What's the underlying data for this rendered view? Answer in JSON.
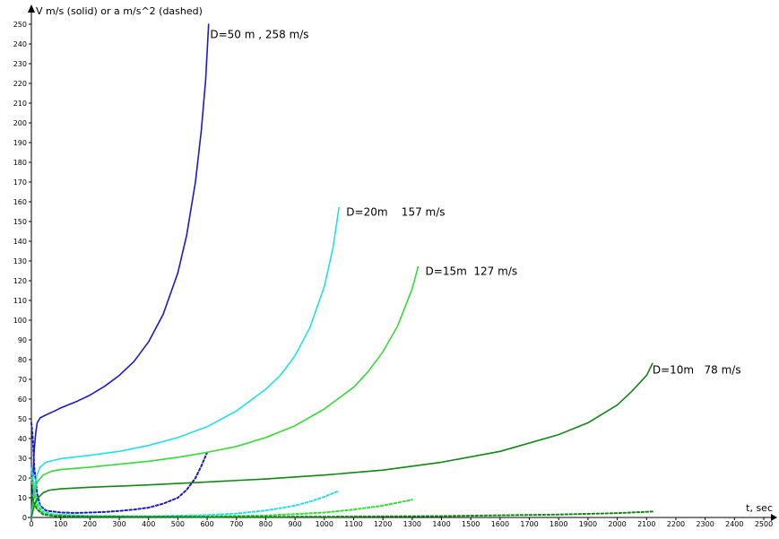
{
  "chart_data": {
    "type": "line",
    "title": "",
    "xlabel": "t, sec",
    "ylabel": "V m/s (solid) or a m/s^2 (dashed)",
    "xlim": [
      0,
      2500
    ],
    "ylim": [
      0,
      250
    ],
    "x_ticks": [
      0,
      100,
      200,
      300,
      400,
      500,
      600,
      700,
      800,
      900,
      1000,
      1100,
      1200,
      1300,
      1400,
      1500,
      1600,
      1700,
      1800,
      1900,
      2000,
      2100,
      2200,
      2300,
      2400,
      2500
    ],
    "y_ticks": [
      0,
      10,
      20,
      30,
      40,
      50,
      60,
      70,
      80,
      90,
      100,
      110,
      120,
      130,
      140,
      150,
      160,
      170,
      180,
      190,
      200,
      210,
      220,
      230,
      240,
      250
    ],
    "grid": false,
    "legend": "none",
    "annotations": [
      {
        "text": "D=50 m , 258 m/s",
        "x": 610,
        "y": 243,
        "color": "#000000"
      },
      {
        "text": "D=20m    157 m/s",
        "x": 1075,
        "y": 153,
        "color": "#000000"
      },
      {
        "text": "D=15m  127 m/s",
        "x": 1345,
        "y": 123,
        "color": "#000000"
      },
      {
        "text": "D=10m   78 m/s",
        "x": 2120,
        "y": 73,
        "color": "#000000"
      }
    ],
    "series": [
      {
        "color": "#1a1acc",
        "style": "solid",
        "points": [
          [
            0,
            0
          ],
          [
            5,
            20
          ],
          [
            10,
            35
          ],
          [
            15,
            43
          ],
          [
            20,
            48
          ],
          [
            30,
            50.5
          ],
          [
            50,
            52
          ],
          [
            80,
            54
          ],
          [
            100,
            55.5
          ],
          [
            150,
            58.5
          ],
          [
            200,
            62
          ],
          [
            250,
            66.5
          ],
          [
            300,
            72
          ],
          [
            350,
            79
          ],
          [
            400,
            89
          ],
          [
            450,
            103
          ],
          [
            500,
            124
          ],
          [
            530,
            143
          ],
          [
            560,
            170
          ],
          [
            580,
            196
          ],
          [
            595,
            222
          ],
          [
            605,
            250
          ]
        ]
      },
      {
        "color": "#1a1acc",
        "style": "dashed",
        "points": [
          [
            0,
            48
          ],
          [
            5,
            40
          ],
          [
            10,
            25
          ],
          [
            20,
            12
          ],
          [
            30,
            6
          ],
          [
            50,
            3.5
          ],
          [
            100,
            2.5
          ],
          [
            150,
            2.3
          ],
          [
            200,
            2.5
          ],
          [
            250,
            2.8
          ],
          [
            300,
            3.3
          ],
          [
            350,
            4
          ],
          [
            400,
            5
          ],
          [
            450,
            7
          ],
          [
            500,
            10
          ],
          [
            530,
            14
          ],
          [
            560,
            20
          ],
          [
            580,
            26
          ],
          [
            600,
            33
          ]
        ]
      },
      {
        "color": "#22e0e8",
        "style": "solid",
        "points": [
          [
            0,
            0
          ],
          [
            10,
            15
          ],
          [
            20,
            22
          ],
          [
            30,
            25.5
          ],
          [
            50,
            28
          ],
          [
            100,
            29.8
          ],
          [
            200,
            31.5
          ],
          [
            300,
            33.5
          ],
          [
            400,
            36.5
          ],
          [
            500,
            40.5
          ],
          [
            600,
            46
          ],
          [
            700,
            54
          ],
          [
            800,
            65
          ],
          [
            850,
            72
          ],
          [
            900,
            82
          ],
          [
            950,
            96
          ],
          [
            1000,
            117
          ],
          [
            1030,
            137
          ],
          [
            1050,
            157
          ]
        ]
      },
      {
        "color": "#22e0e8",
        "style": "dashed",
        "points": [
          [
            0,
            25
          ],
          [
            10,
            15
          ],
          [
            20,
            8
          ],
          [
            40,
            3
          ],
          [
            80,
            1.5
          ],
          [
            200,
            0.8
          ],
          [
            400,
            0.6
          ],
          [
            600,
            1.2
          ],
          [
            700,
            2
          ],
          [
            800,
            3.5
          ],
          [
            900,
            6
          ],
          [
            950,
            8
          ],
          [
            1000,
            10.5
          ],
          [
            1050,
            13.5
          ]
        ]
      },
      {
        "color": "#33dd33",
        "style": "solid",
        "points": [
          [
            0,
            0
          ],
          [
            10,
            12
          ],
          [
            20,
            18
          ],
          [
            40,
            21.5
          ],
          [
            70,
            23.5
          ],
          [
            100,
            24.3
          ],
          [
            200,
            25.5
          ],
          [
            300,
            27
          ],
          [
            400,
            28.5
          ],
          [
            500,
            30.5
          ],
          [
            600,
            33
          ],
          [
            700,
            36
          ],
          [
            800,
            40.5
          ],
          [
            900,
            46.5
          ],
          [
            1000,
            55
          ],
          [
            1100,
            66
          ],
          [
            1150,
            74
          ],
          [
            1200,
            84
          ],
          [
            1250,
            97
          ],
          [
            1300,
            116
          ],
          [
            1320,
            127
          ]
        ]
      },
      {
        "color": "#33dd33",
        "style": "dashed",
        "points": [
          [
            0,
            20
          ],
          [
            10,
            12
          ],
          [
            20,
            6
          ],
          [
            40,
            2
          ],
          [
            80,
            1
          ],
          [
            200,
            0.6
          ],
          [
            400,
            0.5
          ],
          [
            600,
            0.5
          ],
          [
            800,
            1
          ],
          [
            1000,
            2.5
          ],
          [
            1100,
            4
          ],
          [
            1200,
            6
          ],
          [
            1300,
            9
          ]
        ]
      },
      {
        "color": "#118811",
        "style": "solid",
        "points": [
          [
            0,
            0
          ],
          [
            10,
            6
          ],
          [
            20,
            9.5
          ],
          [
            40,
            12.5
          ],
          [
            60,
            13.8
          ],
          [
            100,
            14.5
          ],
          [
            200,
            15.3
          ],
          [
            400,
            16.5
          ],
          [
            600,
            18
          ],
          [
            800,
            19.5
          ],
          [
            1000,
            21.5
          ],
          [
            1200,
            24
          ],
          [
            1400,
            28
          ],
          [
            1600,
            33.5
          ],
          [
            1800,
            42
          ],
          [
            1900,
            48
          ],
          [
            2000,
            57
          ],
          [
            2050,
            64
          ],
          [
            2100,
            72
          ],
          [
            2120,
            78
          ]
        ]
      },
      {
        "color": "#118811",
        "style": "dashed",
        "points": [
          [
            0,
            12
          ],
          [
            10,
            7
          ],
          [
            20,
            4
          ],
          [
            40,
            1.5
          ],
          [
            80,
            0.7
          ],
          [
            200,
            0.4
          ],
          [
            600,
            0.3
          ],
          [
            1000,
            0.4
          ],
          [
            1400,
            0.7
          ],
          [
            1800,
            1.5
          ],
          [
            2000,
            2.2
          ],
          [
            2120,
            3
          ]
        ]
      }
    ]
  }
}
